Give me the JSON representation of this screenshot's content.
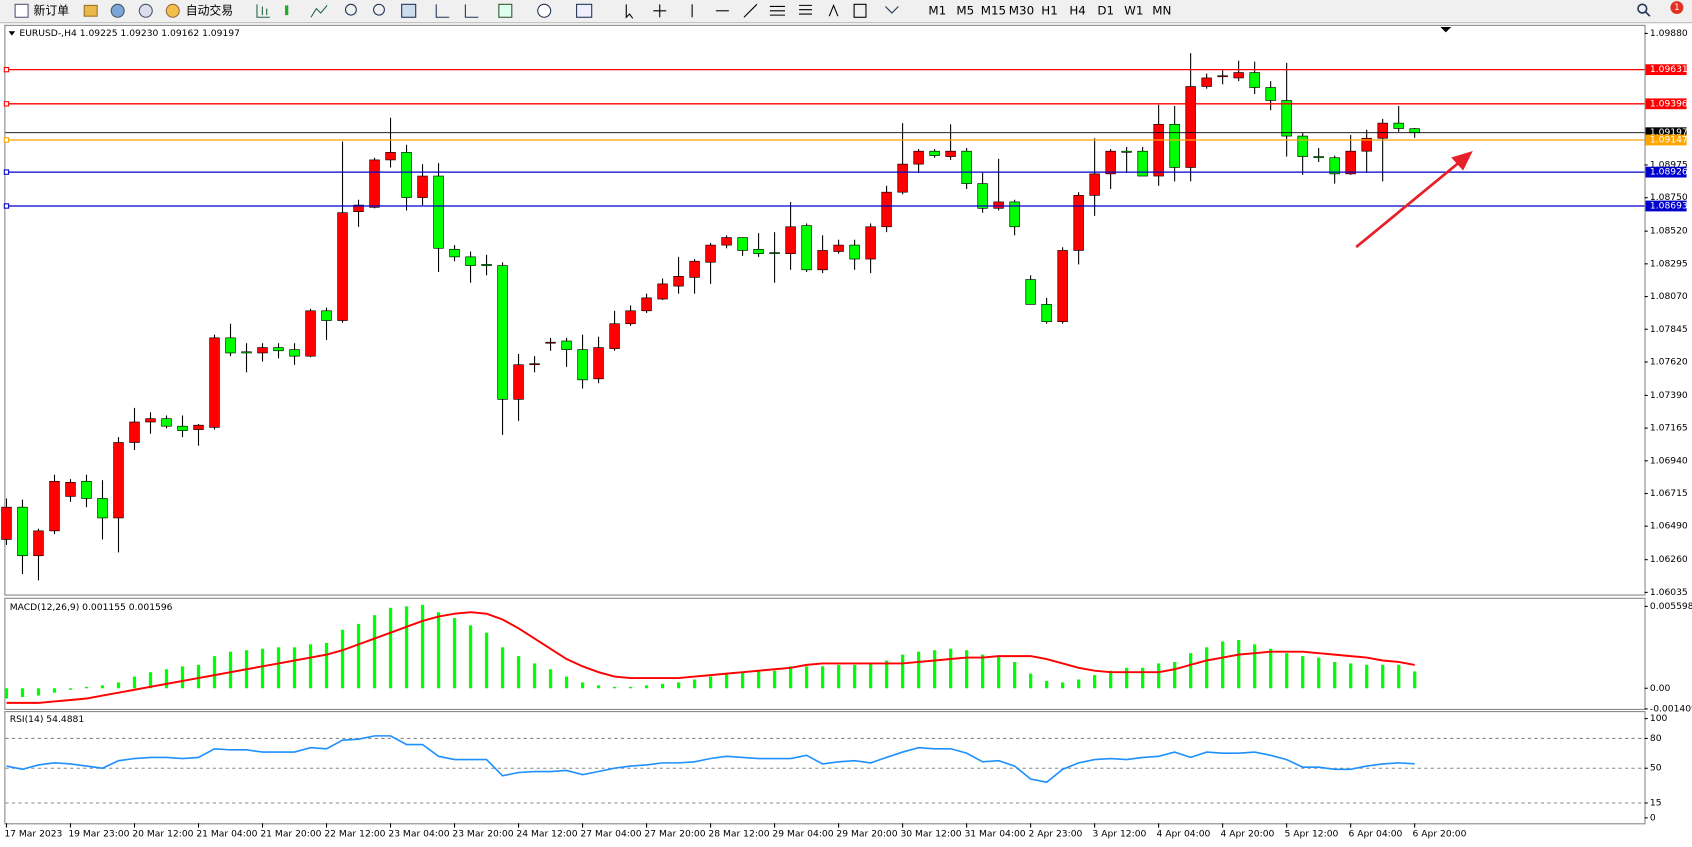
{
  "toolbar": {
    "new_order": "新订单",
    "auto_trading": "自动交易",
    "timeframes": [
      "M1",
      "M5",
      "M15",
      "M30",
      "H1",
      "H4",
      "D1",
      "W1",
      "MN"
    ]
  },
  "notification_count": "1",
  "chart_data": [
    {
      "type": "candlestick",
      "title": "EURUSD-,H4  1.09225 1.09230 1.09162 1.09197",
      "categories": [
        "17 Mar 2023",
        null,
        null,
        null,
        "19 Mar 23:00",
        null,
        null,
        null,
        "20 Mar 12:00",
        null,
        null,
        null,
        "21 Mar 04:00",
        null,
        null,
        null,
        "21 Mar 20:00",
        null,
        null,
        null,
        "22 Mar 12:00",
        null,
        null,
        null,
        "23 Mar 04:00",
        null,
        null,
        null,
        "23 Mar 20:00",
        null,
        null,
        null,
        "24 Mar 12:00",
        null,
        null,
        null,
        "27 Mar 04:00",
        null,
        null,
        null,
        "27 Mar 20:00",
        null,
        null,
        null,
        "28 Mar 12:00",
        null,
        null,
        null,
        "29 Mar 04:00",
        null,
        null,
        null,
        "29 Mar 20:00",
        null,
        null,
        null,
        "30 Mar 12:00",
        null,
        null,
        null,
        "31 Mar 04:00",
        null,
        null,
        null,
        "2 Apr 23:00",
        null,
        null,
        null,
        "3 Apr 12:00",
        null,
        null,
        null,
        "4 Apr 04:00",
        null,
        null,
        null,
        "4 Apr 20:00",
        null,
        null,
        null,
        "5 Apr 12:00",
        null,
        null,
        null,
        "6 Apr 04:00",
        null,
        null,
        null,
        "6 Apr 20:00"
      ],
      "open": [
        1.06399,
        1.06621,
        1.06287,
        1.06458,
        1.06695,
        1.06799,
        1.06681,
        1.06547,
        1.07066,
        1.07207,
        1.0723,
        1.07178,
        1.07155,
        1.0717,
        1.07786,
        1.0769,
        1.07682,
        1.07719,
        1.07705,
        1.0766,
        1.07972,
        1.07905,
        1.08654,
        1.08684,
        1.0901,
        1.09062,
        1.08751,
        1.08899,
        1.08395,
        1.08343,
        1.08291,
        1.08283,
        1.07363,
        1.07601,
        1.07749,
        1.07764,
        1.07705,
        1.07504,
        1.07712,
        1.07883,
        1.07972,
        1.08053,
        1.08142,
        1.08202,
        1.08306,
        1.08424,
        1.08476,
        1.08395,
        1.08372,
        1.08365,
        1.08558,
        1.08254,
        1.0838,
        1.08424,
        1.08328,
        1.0855,
        1.08788,
        1.08981,
        1.0907,
        1.09033,
        1.0907,
        1.08847,
        1.08677,
        1.08721,
        1.08187,
        1.08016,
        1.07897,
        1.08387,
        1.08766,
        1.08914,
        1.0907,
        1.0907,
        1.08899,
        1.09255,
        1.08958,
        1.09515,
        1.09582,
        1.09574,
        1.09611,
        1.09508,
        1.09419,
        1.09174,
        1.09033,
        1.09025,
        1.08914,
        1.0907,
        1.09159,
        1.09263,
        1.09225
      ],
      "high": [
        1.06681,
        1.06673,
        1.06473,
        1.06844,
        1.06814,
        1.06844,
        1.06807,
        1.07103,
        1.07304,
        1.07274,
        1.07252,
        1.07252,
        1.07193,
        1.07808,
        1.07883,
        1.07749,
        1.07749,
        1.07749,
        1.07749,
        1.07986,
        1.07994,
        1.09137,
        1.08736,
        1.09025,
        1.093,
        1.09114,
        1.08981,
        1.08988,
        1.08424,
        1.0838,
        1.08357,
        1.08306,
        1.07675,
        1.0766,
        1.07786,
        1.07786,
        1.07808,
        1.07794,
        1.07972,
        1.08009,
        1.0809,
        1.08194,
        1.08343,
        1.08328,
        1.08439,
        1.08491,
        1.08476,
        1.08506,
        1.08513,
        1.08721,
        1.08573,
        1.08491,
        1.08461,
        1.08461,
        1.08573,
        1.08832,
        1.09263,
        1.09085,
        1.09085,
        1.09255,
        1.09092,
        1.08921,
        1.09018,
        1.08736,
        1.08216,
        1.08061,
        1.08409,
        1.08788,
        1.09159,
        1.09085,
        1.09099,
        1.09099,
        1.09389,
        1.09381,
        1.09745,
        1.09604,
        1.09626,
        1.09693,
        1.09686,
        1.09552,
        1.09678,
        1.09196,
        1.09092,
        1.0904,
        1.09181,
        1.09218,
        1.09292,
        1.09381,
        1.0923
      ],
      "low": [
        1.06361,
        1.06161,
        1.06117,
        1.06436,
        1.06658,
        1.06621,
        1.06399,
        1.0631,
        1.07014,
        1.07126,
        1.07163,
        1.07103,
        1.07044,
        1.07155,
        1.0766,
        1.07549,
        1.07623,
        1.07645,
        1.07601,
        1.07653,
        1.07771,
        1.0789,
        1.0855,
        1.08677,
        1.08958,
        1.08662,
        1.08699,
        1.08239,
        1.08313,
        1.08165,
        1.08216,
        1.07118,
        1.07215,
        1.07549,
        1.07697,
        1.07586,
        1.07437,
        1.07474,
        1.07697,
        1.07868,
        1.07957,
        1.08046,
        1.0809,
        1.0809,
        1.08157,
        1.08402,
        1.0835,
        1.08343,
        1.08165,
        1.08254,
        1.08239,
        1.08231,
        1.08365,
        1.08254,
        1.08231,
        1.08513,
        1.08773,
        1.08921,
        1.09025,
        1.0901,
        1.0881,
        1.08647,
        1.08662,
        1.08491,
        1.08016,
        1.07883,
        1.07883,
        1.08291,
        1.08625,
        1.0881,
        1.08921,
        1.08899,
        1.08832,
        1.08862,
        1.08862,
        1.095,
        1.0953,
        1.09552,
        1.09463,
        1.09352,
        1.09033,
        1.08907,
        1.08996,
        1.08847,
        1.08907,
        1.08921,
        1.08862,
        1.09203,
        1.09162
      ],
      "close": [
        1.06621,
        1.06287,
        1.06458,
        1.06799,
        1.06792,
        1.06681,
        1.06547,
        1.07066,
        1.07207,
        1.0723,
        1.07178,
        1.07148,
        1.07185,
        1.07786,
        1.07682,
        1.07682,
        1.07719,
        1.07697,
        1.0766,
        1.07972,
        1.07905,
        1.08647,
        1.08699,
        1.0901,
        1.09062,
        1.08751,
        1.08899,
        1.08402,
        1.08343,
        1.08283,
        1.08283,
        1.07363,
        1.07601,
        1.07608,
        1.07756,
        1.07705,
        1.07497,
        1.07719,
        1.07883,
        1.07972,
        1.08061,
        1.08157,
        1.08209,
        1.08313,
        1.08424,
        1.08476,
        1.08387,
        1.08365,
        1.08365,
        1.0855,
        1.08254,
        1.08387,
        1.08424,
        1.08328,
        1.0855,
        1.08788,
        1.08981,
        1.0907,
        1.0904,
        1.0907,
        1.08847,
        1.08677,
        1.08721,
        1.0855,
        1.08016,
        1.07897,
        1.08387,
        1.08766,
        1.08914,
        1.0907,
        1.09062,
        1.08899,
        1.09255,
        1.08958,
        1.09515,
        1.09574,
        1.09589,
        1.09611,
        1.09508,
        1.09419,
        1.09174,
        1.09033,
        1.09025,
        1.08914,
        1.0907,
        1.09159,
        1.09263,
        1.09226,
        1.09197
      ],
      "up_color": "#ff0000",
      "down_color": "#00ff00",
      "ylim": [
        1.06035,
        1.0988
      ],
      "yticks": [
        {
          "value": 1.0988,
          "label": "1.09880"
        },
        1.08975,
        {
          "value": 1.0875,
          "label": "1.08750"
        },
        {
          "value": 1.0852,
          "label": "1.08520"
        },
        1.08295,
        {
          "value": 1.0807,
          "label": "1.08070"
        },
        1.07845,
        {
          "value": 1.0762,
          "label": "1.07620"
        },
        {
          "value": 1.0739,
          "label": "1.07390"
        },
        1.07165,
        {
          "value": 1.0694,
          "label": "1.06940"
        },
        1.06715,
        {
          "value": 1.0649,
          "label": "1.06490"
        },
        {
          "value": 1.0626,
          "label": "1.06260"
        },
        1.06035
      ],
      "hlines": [
        {
          "value": 1.09631,
          "color": "#ff0000"
        },
        {
          "value": 1.09396,
          "color": "#ff0000"
        },
        {
          "value": 1.09147,
          "color": "#ffa500"
        },
        {
          "value": 1.08926,
          "color": "#0000cc"
        },
        {
          "value": 1.08693,
          "color": "#0000cc"
        }
      ]
    },
    {
      "type": "macd",
      "title": "MACD(12,26,9) 0.001155 0.001596",
      "histogram": [
        -0.0007,
        -0.0006,
        -0.0005,
        -0.0003,
        -0.0001,
        0.0001,
        0.0002,
        0.0004,
        0.0008,
        0.0011,
        0.0013,
        0.0015,
        0.0016,
        0.0022,
        0.0025,
        0.0026,
        0.0027,
        0.0028,
        0.0028,
        0.003,
        0.0031,
        0.004,
        0.0044,
        0.005,
        0.0055,
        0.0056,
        0.0057,
        0.0052,
        0.0048,
        0.0043,
        0.0038,
        0.0028,
        0.0022,
        0.0017,
        0.0013,
        0.0008,
        0.0004,
        0.0002,
        0.0001,
        0.0001,
        0.0002,
        0.0003,
        0.0004,
        0.0006,
        0.0008,
        0.001,
        0.0011,
        0.0012,
        0.0012,
        0.0015,
        0.0015,
        0.0015,
        0.0016,
        0.0016,
        0.0017,
        0.0019,
        0.0023,
        0.0025,
        0.0026,
        0.0027,
        0.0026,
        0.0023,
        0.0022,
        0.0018,
        0.001,
        0.0005,
        0.0004,
        0.0006,
        0.0009,
        0.0012,
        0.0014,
        0.0014,
        0.0017,
        0.0018,
        0.0024,
        0.0028,
        0.0032,
        0.0033,
        0.003,
        0.0027,
        0.0024,
        0.0022,
        0.0021,
        0.0018,
        0.0017,
        0.0016,
        0.0016,
        0.0016,
        0.001155
      ],
      "signal": [
        -0.001,
        -0.001,
        -0.001,
        -0.0009,
        -0.0008,
        -0.0007,
        -0.0005,
        -0.0003,
        -0.0001,
        0.0001,
        0.0003,
        0.0005,
        0.0007,
        0.0009,
        0.0011,
        0.0013,
        0.0015,
        0.0017,
        0.0019,
        0.0021,
        0.0023,
        0.0026,
        0.003,
        0.0034,
        0.0038,
        0.0042,
        0.0046,
        0.0049,
        0.0051,
        0.0052,
        0.0051,
        0.0047,
        0.0041,
        0.0034,
        0.0027,
        0.002,
        0.0015,
        0.0011,
        0.0008,
        0.0007,
        0.0007,
        0.0007,
        0.0007,
        0.0008,
        0.0009,
        0.001,
        0.0011,
        0.0012,
        0.0013,
        0.0014,
        0.0016,
        0.0017,
        0.0017,
        0.0017,
        0.0017,
        0.0017,
        0.0017,
        0.0018,
        0.0019,
        0.002,
        0.0021,
        0.0021,
        0.0022,
        0.0022,
        0.0022,
        0.002,
        0.0017,
        0.0014,
        0.0012,
        0.0011,
        0.0011,
        0.0011,
        0.0011,
        0.0013,
        0.0016,
        0.0019,
        0.0021,
        0.0023,
        0.0024,
        0.0025,
        0.0025,
        0.0025,
        0.0024,
        0.0023,
        0.0022,
        0.0021,
        0.0019,
        0.0018,
        0.001596
      ],
      "histogram_color": "#00ff00",
      "signal_color": "#ff0000",
      "ylim": [
        -0.001409,
        0.005598
      ],
      "yticks": [
        0.005598,
        {
          "value": 0,
          "label": "0.00"
        },
        -0.001409
      ]
    },
    {
      "type": "line",
      "title": "RSI(14) 54.4881",
      "values": [
        52.2,
        48.9,
        53.3,
        55.4,
        54.3,
        52.2,
        50.0,
        57.6,
        59.8,
        60.9,
        60.9,
        59.8,
        60.9,
        69.6,
        68.5,
        68.5,
        66.3,
        66.3,
        66.3,
        70.7,
        69.6,
        78.3,
        79.3,
        82.6,
        82.6,
        73.9,
        73.9,
        62.0,
        58.7,
        58.7,
        58.7,
        42.4,
        45.7,
        46.7,
        46.7,
        47.8,
        43.5,
        46.7,
        50.0,
        52.2,
        53.3,
        55.4,
        55.4,
        56.5,
        59.8,
        62.0,
        60.9,
        59.8,
        59.8,
        59.8,
        63.0,
        54.3,
        56.5,
        57.6,
        55.4,
        60.9,
        66.3,
        70.7,
        69.6,
        69.6,
        65.2,
        56.5,
        57.6,
        52.2,
        39.1,
        35.9,
        48.9,
        55.4,
        58.7,
        59.8,
        58.7,
        60.9,
        62.0,
        66.3,
        60.9,
        66.3,
        65.2,
        65.2,
        66.3,
        63.0,
        58.7,
        51.1,
        51.1,
        48.9,
        48.9,
        52.2,
        54.3,
        55.4,
        54.4881
      ],
      "color": "#1e90ff",
      "ylim": [
        0,
        100
      ],
      "yticks": [
        100,
        80,
        50,
        15,
        0
      ]
    }
  ]
}
